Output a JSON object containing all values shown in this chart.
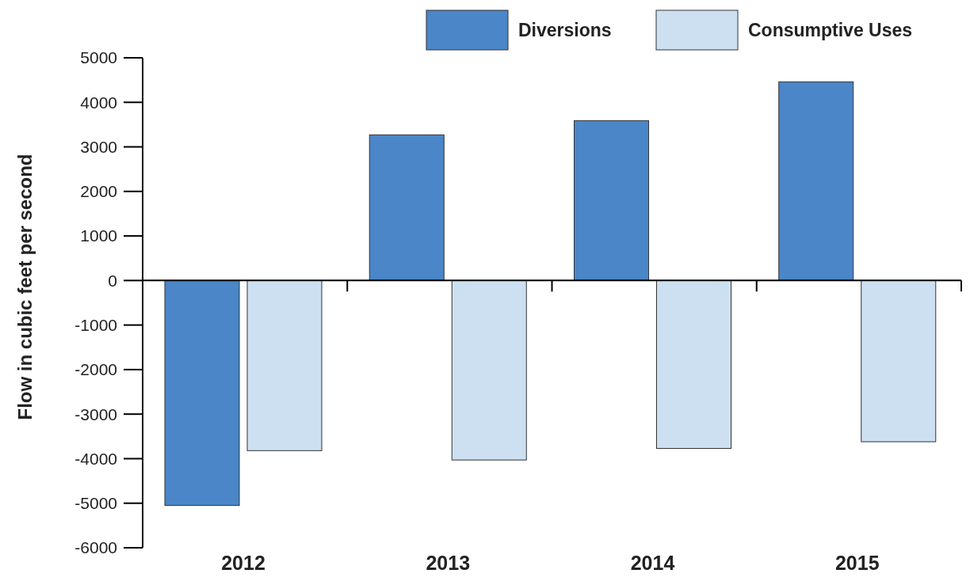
{
  "chart_data": {
    "type": "bar",
    "ylabel": "Flow in cubic feet per second",
    "categories": [
      "2012",
      "2013",
      "2014",
      "2015"
    ],
    "series": [
      {
        "name": "Diversions",
        "color": "#4a86c8",
        "values": [
          -5050,
          3270,
          3590,
          4460
        ]
      },
      {
        "name": "Consumptive Uses",
        "color": "#cde0f2",
        "values": [
          -3820,
          -4030,
          -3770,
          -3620
        ]
      }
    ],
    "ylim": [
      -6000,
      5000
    ],
    "yticks": [
      -6000,
      -5000,
      -4000,
      -3000,
      -2000,
      -1000,
      0,
      1000,
      2000,
      3000,
      4000,
      5000
    ],
    "legend": "top right"
  }
}
